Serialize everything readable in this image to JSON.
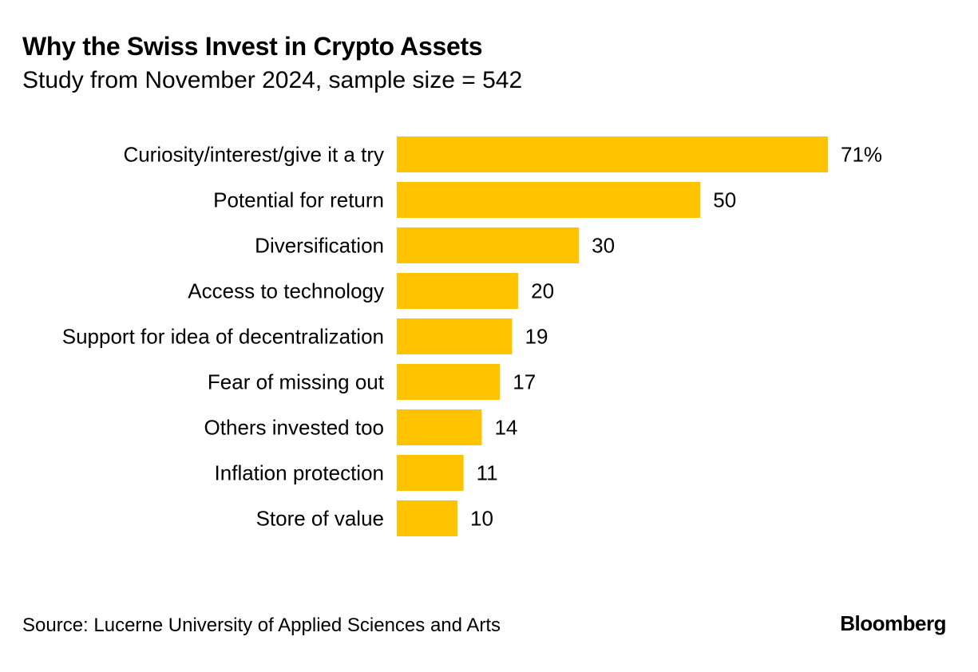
{
  "header": {
    "title": "Why the Swiss Invest in Crypto Assets",
    "subtitle": "Study from November 2024, sample size = 542"
  },
  "footer": {
    "source": "Source: Lucerne University of Applied Sciences and Arts",
    "brand": "Bloomberg"
  },
  "colors": {
    "bar": "#FFC300",
    "text": "#000000",
    "background": "#FFFFFF"
  },
  "chart_data": {
    "type": "bar",
    "orientation": "horizontal",
    "title": "Why the Swiss Invest in Crypto Assets",
    "subtitle": "Study from November 2024, sample size = 542",
    "categories": [
      "Curiosity/interest/give it a try",
      "Potential for return",
      "Diversification",
      "Access to technology",
      "Support for idea of decentralization",
      "Fear of missing out",
      "Others invested too",
      "Inflation protection",
      "Store of value"
    ],
    "values": [
      71,
      50,
      30,
      20,
      19,
      17,
      14,
      11,
      10
    ],
    "value_labels": [
      "71%",
      "50",
      "30",
      "20",
      "19",
      "17",
      "14",
      "11",
      "10"
    ],
    "unit": "%",
    "xlim": [
      0,
      71
    ],
    "grid": false,
    "legend": "none"
  }
}
